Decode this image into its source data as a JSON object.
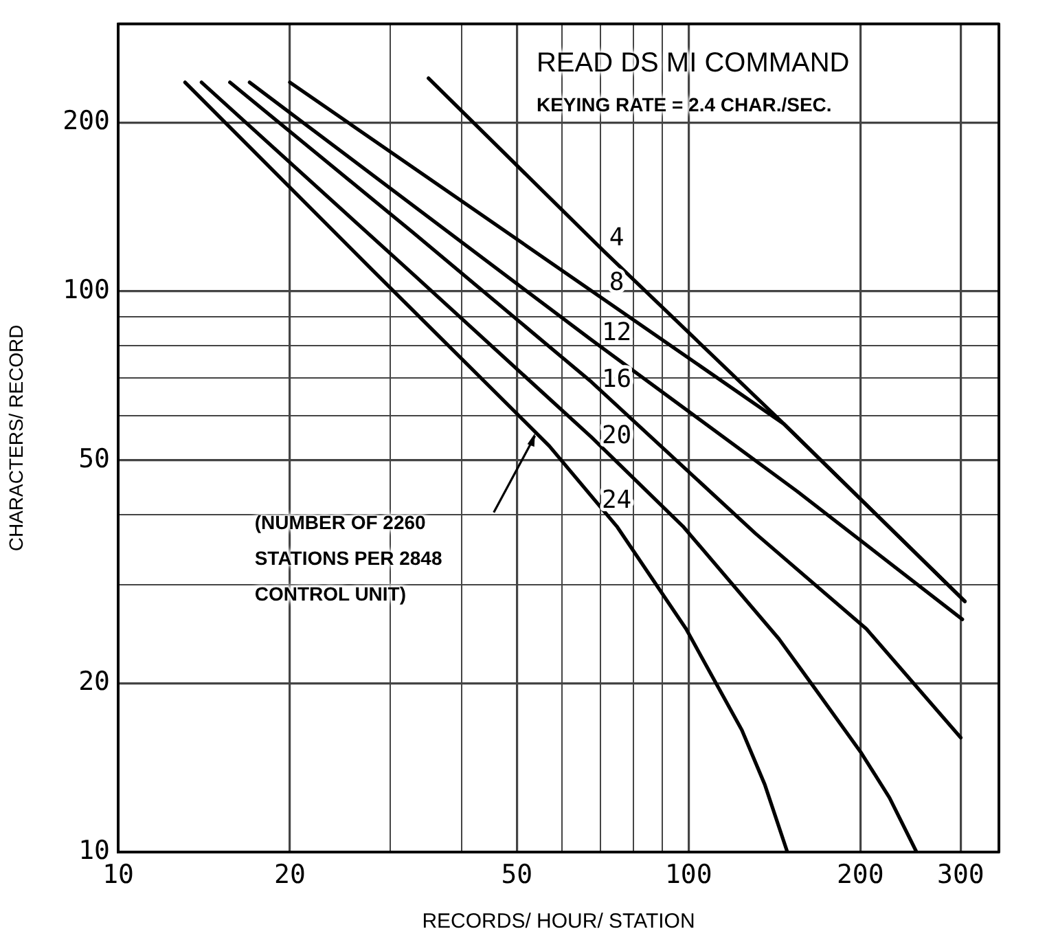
{
  "chart_data": {
    "type": "line",
    "title": "READ DS MI COMMAND",
    "subtitle": "KEYING RATE = 2.4 CHAR./SEC.",
    "xlabel": "RECORDS/ HOUR/ STATION",
    "ylabel": "CHARACTERS/ RECORD",
    "annotations": [
      "(NUMBER OF 2260 STATIONS PER 2848 CONTROL UNIT)"
    ],
    "series": [
      {
        "name": "4",
        "color": "#000000",
        "x": [
          35,
          71,
          147,
          305
        ],
        "values": [
          240,
          118,
          58,
          28
        ]
      },
      {
        "name": "8",
        "color": "#000000",
        "x": [
          20,
          57,
          147,
          305
        ],
        "values": [
          236,
          113,
          58,
          28
        ]
      },
      {
        "name": "12",
        "color": "#000000",
        "x": [
          17,
          67.5,
          155,
          302
        ],
        "values": [
          236,
          82,
          44,
          26
        ]
      },
      {
        "name": "16",
        "color": "#000000",
        "x": [
          15.7,
          33,
          67.5,
          131,
          205,
          300
        ],
        "values": [
          236,
          127,
          69,
          37,
          25,
          16
        ]
      },
      {
        "name": "20",
        "color": "#000000",
        "x": [
          14,
          33,
          67.5,
          98,
          144,
          167,
          201,
          225,
          251
        ],
        "values": [
          236,
          107,
          55,
          38,
          24,
          19.5,
          15,
          12.5,
          10
        ]
      },
      {
        "name": "24",
        "color": "#000000",
        "x": [
          13.1,
          27.7,
          57,
          75,
          99,
          124,
          136,
          149
        ],
        "values": [
          236,
          110,
          53,
          38,
          25,
          16.5,
          13.2,
          10
        ]
      }
    ],
    "log": "xy",
    "xlim": [
      10,
      350
    ],
    "ylim": [
      10,
      300
    ],
    "xticks": [
      10,
      20,
      {
        "value": 30,
        "label": null
      },
      {
        "value": 40,
        "label": null
      },
      50,
      {
        "value": 60,
        "label": null
      },
      {
        "value": 70,
        "label": null
      },
      {
        "value": 80,
        "label": null
      },
      {
        "value": 90,
        "label": null
      },
      100,
      200,
      300
    ],
    "yticks": [
      10,
      20,
      {
        "value": 30,
        "label": null
      },
      {
        "value": 40,
        "label": null
      },
      50,
      {
        "value": 60,
        "label": null
      },
      {
        "value": 70,
        "label": null
      },
      {
        "value": 80,
        "label": null
      },
      {
        "value": 90,
        "label": null
      },
      100,
      200
    ],
    "grid": true,
    "legend": false,
    "marker": "none",
    "line_style": "solid"
  }
}
